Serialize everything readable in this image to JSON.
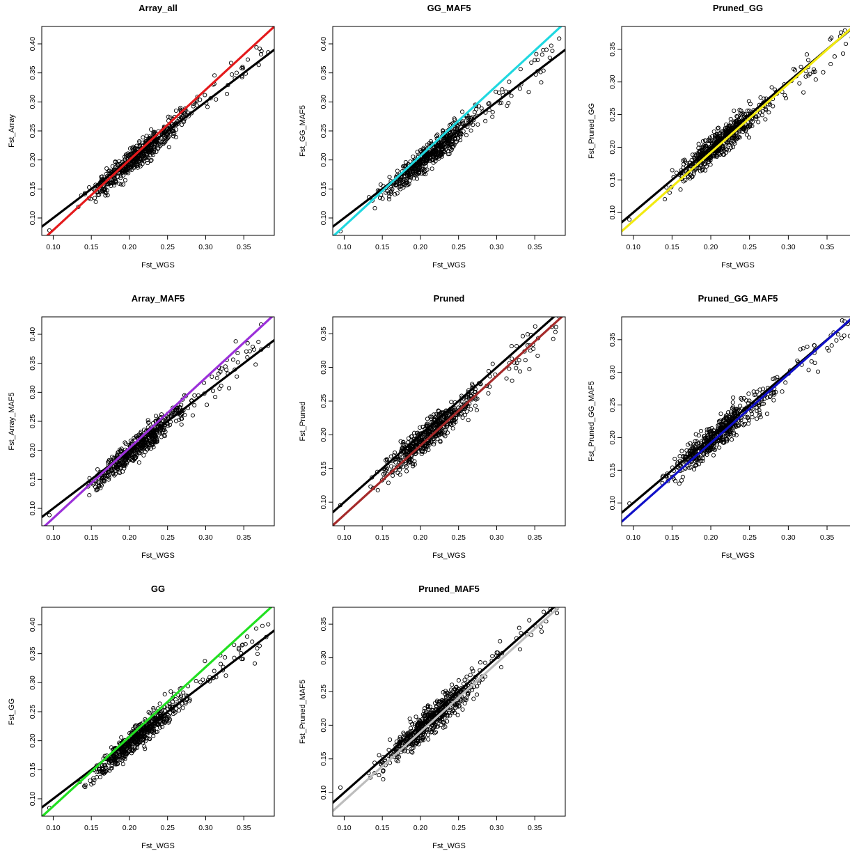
{
  "chart_data": [
    {
      "type": "scatter",
      "title": "Array_all",
      "xlabel": "Fst_WGS",
      "ylabel": "Fst_Array",
      "fit_color": "#e41a1c",
      "xlim": [
        0.085,
        0.39
      ],
      "ylim": [
        0.07,
        0.43
      ],
      "xticks": [
        0.1,
        0.15,
        0.2,
        0.25,
        0.3,
        0.35
      ],
      "yticks": [
        0.1,
        0.15,
        0.2,
        0.25,
        0.3,
        0.35,
        0.4
      ],
      "points_params": {
        "slope": 1.1,
        "intercept": -0.025,
        "spread": 0.011
      },
      "lines": [
        {
          "name": "identity",
          "color": "#000000",
          "slope": 1.0,
          "intercept": 0.0
        },
        {
          "name": "fit",
          "color": "#e41a1c",
          "slope": 1.21,
          "intercept": -0.042
        }
      ]
    },
    {
      "type": "scatter",
      "title": "GG_MAF5",
      "xlabel": "Fst_WGS",
      "ylabel": "Fst_GG_MAF5",
      "fit_color": "#20d8e0",
      "xlim": [
        0.085,
        0.39
      ],
      "ylim": [
        0.07,
        0.43
      ],
      "xticks": [
        0.1,
        0.15,
        0.2,
        0.25,
        0.3,
        0.35
      ],
      "yticks": [
        0.1,
        0.15,
        0.2,
        0.25,
        0.3,
        0.35,
        0.4
      ],
      "points_params": {
        "slope": 1.1,
        "intercept": -0.025,
        "spread": 0.011
      },
      "lines": [
        {
          "name": "identity",
          "color": "#000000",
          "slope": 1.0,
          "intercept": 0.0
        },
        {
          "name": "fit",
          "color": "#20d8e0",
          "slope": 1.21,
          "intercept": -0.035
        }
      ]
    },
    {
      "type": "scatter",
      "title": "Pruned_GG",
      "xlabel": "Fst_WGS",
      "ylabel": "Fst_Pruned_GG",
      "fit_color": "#f2ea10",
      "xlim": [
        0.085,
        0.385
      ],
      "ylim": [
        0.065,
        0.385
      ],
      "xticks": [
        0.1,
        0.15,
        0.2,
        0.25,
        0.3,
        0.35
      ],
      "yticks": [
        0.1,
        0.15,
        0.2,
        0.25,
        0.3,
        0.35
      ],
      "points_params": {
        "slope": 0.98,
        "intercept": 0.0,
        "spread": 0.011
      },
      "lines": [
        {
          "name": "identity",
          "color": "#000000",
          "slope": 1.0,
          "intercept": 0.0
        },
        {
          "name": "fit",
          "color": "#f2ea10",
          "slope": 1.05,
          "intercept": -0.018
        }
      ]
    },
    {
      "type": "scatter",
      "title": "Array_MAF5",
      "xlabel": "Fst_WGS",
      "ylabel": "Fst_Array_MAF5",
      "fit_color": "#9b30d9",
      "xlim": [
        0.085,
        0.39
      ],
      "ylim": [
        0.07,
        0.43
      ],
      "xticks": [
        0.1,
        0.15,
        0.2,
        0.25,
        0.3,
        0.35
      ],
      "yticks": [
        0.1,
        0.15,
        0.2,
        0.25,
        0.3,
        0.35,
        0.4
      ],
      "points_params": {
        "slope": 1.1,
        "intercept": -0.025,
        "spread": 0.011
      },
      "lines": [
        {
          "name": "identity",
          "color": "#000000",
          "slope": 1.0,
          "intercept": 0.0
        },
        {
          "name": "fit",
          "color": "#9b30d9",
          "slope": 1.21,
          "intercept": -0.038
        }
      ]
    },
    {
      "type": "scatter",
      "title": "Pruned",
      "xlabel": "Fst_WGS",
      "ylabel": "Fst_Pruned",
      "fit_color": "#a52a2a",
      "xlim": [
        0.085,
        0.39
      ],
      "ylim": [
        0.065,
        0.375
      ],
      "xticks": [
        0.1,
        0.15,
        0.2,
        0.25,
        0.3,
        0.35
      ],
      "yticks": [
        0.1,
        0.15,
        0.2,
        0.25,
        0.3,
        0.35
      ],
      "points_params": {
        "slope": 0.97,
        "intercept": -0.004,
        "spread": 0.011
      },
      "lines": [
        {
          "name": "identity",
          "color": "#000000",
          "slope": 1.0,
          "intercept": 0.0
        },
        {
          "name": "fit",
          "color": "#a52a2a",
          "slope": 1.03,
          "intercept": -0.022
        }
      ]
    },
    {
      "type": "scatter",
      "title": "Pruned_GG_MAF5",
      "xlabel": "Fst_WGS",
      "ylabel": "Fst_Pruned_GG_MAF5",
      "fit_color": "#1010c8",
      "xlim": [
        0.085,
        0.385
      ],
      "ylim": [
        0.065,
        0.385
      ],
      "xticks": [
        0.1,
        0.15,
        0.2,
        0.25,
        0.3,
        0.35
      ],
      "yticks": [
        0.1,
        0.15,
        0.2,
        0.25,
        0.3,
        0.35
      ],
      "points_params": {
        "slope": 0.98,
        "intercept": 0.0,
        "spread": 0.011
      },
      "lines": [
        {
          "name": "identity",
          "color": "#000000",
          "slope": 1.0,
          "intercept": 0.0
        },
        {
          "name": "fit",
          "color": "#1010c8",
          "slope": 1.05,
          "intercept": -0.018
        }
      ]
    },
    {
      "type": "scatter",
      "title": "GG",
      "xlabel": "Fst_WGS",
      "ylabel": "Fst_GG",
      "fit_color": "#22e022",
      "xlim": [
        0.085,
        0.39
      ],
      "ylim": [
        0.07,
        0.43
      ],
      "xticks": [
        0.1,
        0.15,
        0.2,
        0.25,
        0.3,
        0.35
      ],
      "yticks": [
        0.1,
        0.15,
        0.2,
        0.25,
        0.3,
        0.35,
        0.4
      ],
      "points_params": {
        "slope": 1.1,
        "intercept": -0.025,
        "spread": 0.011
      },
      "lines": [
        {
          "name": "identity",
          "color": "#000000",
          "slope": 1.0,
          "intercept": 0.0
        },
        {
          "name": "fit",
          "color": "#22e022",
          "slope": 1.2,
          "intercept": -0.033
        }
      ]
    },
    {
      "type": "scatter",
      "title": "Pruned_MAF5",
      "xlabel": "Fst_WGS",
      "ylabel": "Fst_Pruned_MAF5",
      "fit_color": "#bdbdbd",
      "xlim": [
        0.085,
        0.39
      ],
      "ylim": [
        0.065,
        0.375
      ],
      "xticks": [
        0.1,
        0.15,
        0.2,
        0.25,
        0.3,
        0.35
      ],
      "yticks": [
        0.1,
        0.15,
        0.2,
        0.25,
        0.3,
        0.35
      ],
      "points_params": {
        "slope": 0.99,
        "intercept": -0.004,
        "spread": 0.011
      },
      "lines": [
        {
          "name": "identity",
          "color": "#000000",
          "slope": 1.0,
          "intercept": 0.0
        },
        {
          "name": "fit",
          "color": "#bdbdbd",
          "slope": 1.02,
          "intercept": -0.014
        }
      ]
    }
  ]
}
